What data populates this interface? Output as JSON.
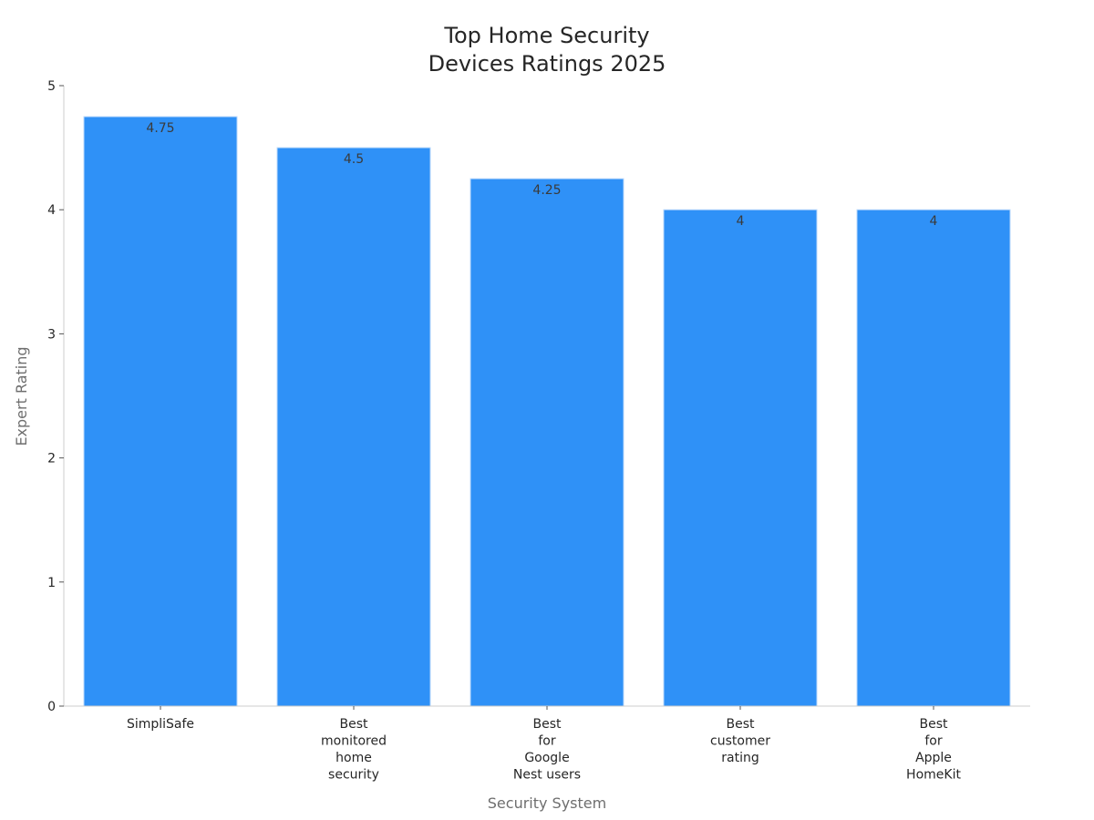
{
  "chart_data": {
    "type": "bar",
    "title": [
      "Top Home Security",
      "Devices Ratings 2025"
    ],
    "xlabel": "Security System",
    "ylabel": "Expert Rating",
    "categories": [
      [
        "SimpliSafe"
      ],
      [
        "Best",
        "monitored",
        "home",
        "security"
      ],
      [
        "Best",
        "for",
        "Google",
        "Nest users"
      ],
      [
        "Best",
        "customer",
        "rating"
      ],
      [
        "Best",
        "for",
        "Apple",
        "HomeKit"
      ]
    ],
    "values": [
      4.75,
      4.5,
      4.25,
      4,
      4
    ],
    "value_labels": [
      "4.75",
      "4.5",
      "4.25",
      "4",
      "4"
    ],
    "ylim": [
      0,
      5
    ],
    "yticks": [
      0,
      1,
      2,
      3,
      4,
      5
    ],
    "grid": false,
    "legend": "none",
    "colors": {
      "bar": "#2f91f7",
      "bar_edge": "#b9d8fb"
    }
  }
}
